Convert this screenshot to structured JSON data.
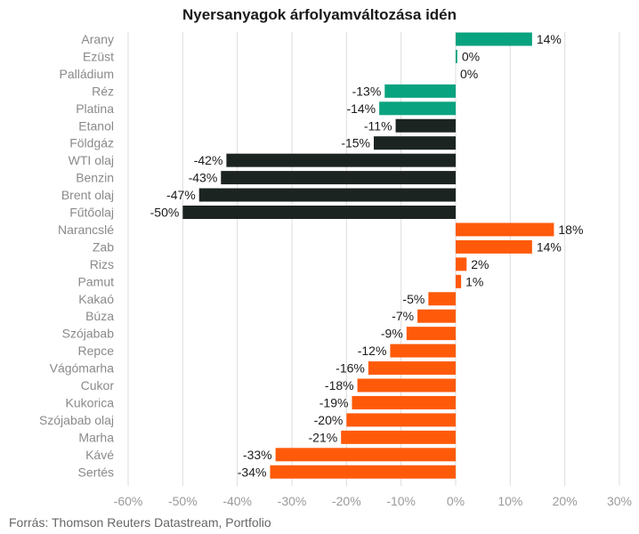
{
  "chart_data": {
    "type": "bar",
    "orientation": "horizontal",
    "title": "Nyersanyagok árfolyamváltozása idén",
    "source": "Forrás: Thomson Reuters Datastream, Portfolio",
    "xlim": [
      -60,
      30
    ],
    "xticks": [
      -60,
      -50,
      -40,
      -30,
      -20,
      -10,
      0,
      10,
      20,
      30
    ],
    "tick_suffix": "%",
    "grid": true,
    "colors": {
      "precious": "#0aa37f",
      "energy": "#1c2422",
      "agri": "#ff5a0a"
    },
    "categories": [
      "Arany",
      "Ezüst",
      "Palládium",
      "Réz",
      "Platina",
      "Etanol",
      "Földgáz",
      "WTI olaj",
      "Benzin",
      "Brent olaj",
      "Fűtőolaj",
      "Narancslé",
      "Zab",
      "Rizs",
      "Pamut",
      "Kakaó",
      "Búza",
      "Szójabab",
      "Repce",
      "Vágómarha",
      "Cukor",
      "Kukorica",
      "Szójabab olaj",
      "Marha",
      "Kávé",
      "Sertés"
    ],
    "values": [
      14,
      0.3,
      0,
      -13,
      -14,
      -11,
      -15,
      -42,
      -43,
      -47,
      -50,
      18,
      14,
      2,
      1,
      -5,
      -7,
      -9,
      -12,
      -16,
      -18,
      -19,
      -20,
      -21,
      -33,
      -34
    ],
    "labels": [
      "14%",
      "0%",
      "0%",
      "-13%",
      "-14%",
      "-11%",
      "-15%",
      "-42%",
      "-43%",
      "-47%",
      "-50%",
      "18%",
      "14%",
      "2%",
      "1%",
      "-5%",
      "-7%",
      "-9%",
      "-12%",
      "-16%",
      "-18%",
      "-19%",
      "-20%",
      "-21%",
      "-33%",
      "-34%"
    ],
    "groups": [
      "precious",
      "precious",
      "precious",
      "precious",
      "precious",
      "energy",
      "energy",
      "energy",
      "energy",
      "energy",
      "energy",
      "agri",
      "agri",
      "agri",
      "agri",
      "agri",
      "agri",
      "agri",
      "agri",
      "agri",
      "agri",
      "agri",
      "agri",
      "agri",
      "agri",
      "agri"
    ]
  }
}
